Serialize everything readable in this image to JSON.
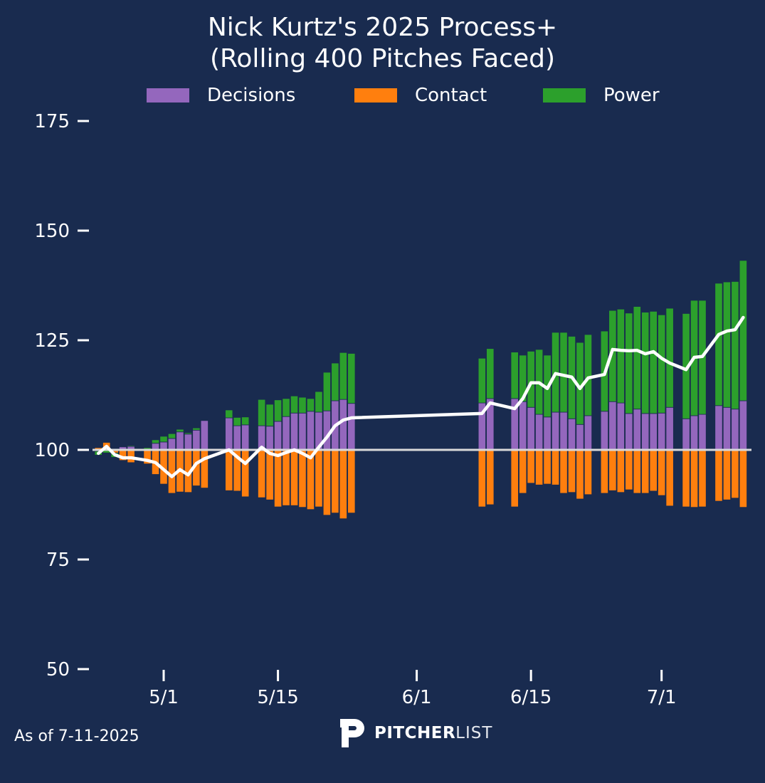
{
  "title_line1": "Nick Kurtz's 2025 Process+",
  "title_line2": "(Rolling 400 Pitches Faced)",
  "footer": {
    "as_of": "As of 7-11-2025",
    "logo_bold": "PITCHER",
    "logo_light": "LIST"
  },
  "chart_data": {
    "type": "bar",
    "stacked": true,
    "title": "Nick Kurtz's 2025 Process+ (Rolling 400 Pitches Faced)",
    "xlabel": "",
    "ylabel": "",
    "ylim": [
      50,
      178
    ],
    "yticks": [
      50,
      75,
      100,
      125,
      150,
      175
    ],
    "baseline": 100,
    "xticks": [
      {
        "label": "5/1",
        "day": 0
      },
      {
        "label": "5/15",
        "day": 14
      },
      {
        "label": "6/1",
        "day": 31
      },
      {
        "label": "6/15",
        "day": 45
      },
      {
        "label": "7/1",
        "day": 61
      }
    ],
    "xlim_days": [
      -9.3,
      72.3
    ],
    "legend": {
      "position": "top-center",
      "entries": [
        "Decisions",
        "Contact",
        "Power"
      ]
    },
    "colors": {
      "Decisions": "#9467bd",
      "Contact": "#ff7f0e",
      "Power": "#2ca02c",
      "line": "#ffffff",
      "baseline": "#d9d9d9"
    },
    "dates": [
      "4/23",
      "4/24",
      "4/25",
      "4/26",
      "4/27",
      "4/29",
      "4/30",
      "5/1",
      "5/2",
      "5/3",
      "5/4",
      "5/5",
      "5/6",
      "5/9",
      "5/10",
      "5/11",
      "5/13",
      "5/14",
      "5/15",
      "5/16",
      "5/17",
      "5/18",
      "5/19",
      "5/20",
      "5/21",
      "5/22",
      "5/23",
      "5/24",
      "6/9",
      "6/10",
      "6/13",
      "6/14",
      "6/15",
      "6/16",
      "6/17",
      "6/18",
      "6/19",
      "6/20",
      "6/21",
      "6/22",
      "6/24",
      "6/25",
      "6/26",
      "6/27",
      "6/28",
      "6/29",
      "6/30",
      "7/1",
      "7/2",
      "7/4",
      "7/5",
      "7/6",
      "7/8",
      "7/9",
      "7/10",
      "7/11"
    ],
    "days": [
      -8,
      -7,
      -6,
      -5,
      -4,
      -2,
      -1,
      0,
      1,
      2,
      3,
      4,
      5,
      8,
      9,
      10,
      12,
      13,
      14,
      15,
      16,
      17,
      18,
      19,
      20,
      21,
      22,
      23,
      39,
      40,
      43,
      44,
      45,
      46,
      47,
      48,
      49,
      50,
      51,
      52,
      54,
      55,
      56,
      57,
      58,
      59,
      60,
      61,
      62,
      64,
      65,
      66,
      68,
      69,
      70,
      71
    ],
    "series": [
      {
        "name": "Decisions",
        "values": [
          -0.3,
          0.2,
          -0.2,
          0.7,
          0.8,
          0.0,
          1.5,
          1.8,
          2.6,
          4.1,
          3.6,
          4.5,
          6.7,
          7.3,
          5.5,
          5.7,
          5.5,
          5.4,
          6.5,
          7.6,
          8.4,
          8.4,
          8.8,
          8.6,
          8.9,
          11.2,
          11.5,
          10.6,
          10.7,
          11.7,
          11.7,
          11.0,
          9.7,
          8.1,
          7.5,
          8.6,
          8.6,
          7.1,
          5.8,
          7.8,
          8.8,
          11.0,
          10.7,
          8.3,
          9.3,
          8.3,
          8.3,
          8.4,
          9.7,
          7.1,
          7.8,
          8.1,
          10.1,
          9.7,
          9.3,
          11.2
        ]
      },
      {
        "name": "Contact",
        "values": [
          0.5,
          1.5,
          -0.5,
          -2.4,
          -2.9,
          -3.2,
          -5.6,
          -7.8,
          -9.9,
          -9.6,
          -9.7,
          -8.2,
          -8.7,
          -9.3,
          -9.4,
          -10.7,
          -10.9,
          -11.4,
          -13.0,
          -12.7,
          -12.7,
          -13.1,
          -13.6,
          -13.0,
          -14.9,
          -14.4,
          -15.7,
          -14.4,
          -13.0,
          -12.5,
          -13.0,
          -9.9,
          -7.6,
          -8.0,
          -7.8,
          -8.0,
          -9.9,
          -9.7,
          -11.2,
          -10.2,
          -9.9,
          -9.3,
          -9.7,
          -9.1,
          -9.9,
          -9.9,
          -9.4,
          -10.4,
          -12.8,
          -13.0,
          -13.1,
          -13.0,
          -11.7,
          -11.4,
          -11.0,
          -13.1
        ]
      },
      {
        "name": "Power",
        "values": [
          -0.9,
          -0.7,
          -1.0,
          0.1,
          0.2,
          0.5,
          0.8,
          1.3,
          1.1,
          0.6,
          0.3,
          0.5,
          0.0,
          1.8,
          1.9,
          1.8,
          6.0,
          5.0,
          4.9,
          4.1,
          3.9,
          3.6,
          2.9,
          4.7,
          8.8,
          8.6,
          10.7,
          11.4,
          10.2,
          11.4,
          10.6,
          10.6,
          12.8,
          14.8,
          14.1,
          18.2,
          18.2,
          18.8,
          18.7,
          18.5,
          18.3,
          20.8,
          21.4,
          22.9,
          23.4,
          23.1,
          23.3,
          22.4,
          22.6,
          24.0,
          26.3,
          26.0,
          27.9,
          28.6,
          29.1,
          32.0
        ]
      },
      {
        "name": "Process+",
        "type": "line",
        "values": [
          99.2,
          100.8,
          98.9,
          98.2,
          98.2,
          97.6,
          97.1,
          95.5,
          93.9,
          95.5,
          94.3,
          96.9,
          98.0,
          100.0,
          98.4,
          96.9,
          100.6,
          99.2,
          98.7,
          99.4,
          100.0,
          99.2,
          98.2,
          100.6,
          102.9,
          105.5,
          106.8,
          107.3,
          108.3,
          110.7,
          109.4,
          111.7,
          115.3,
          115.3,
          114.0,
          117.4,
          117.0,
          116.6,
          114.0,
          116.4,
          117.2,
          122.9,
          122.7,
          122.6,
          122.7,
          121.9,
          122.4,
          120.9,
          119.8,
          118.3,
          121.1,
          121.3,
          126.3,
          127.1,
          127.4,
          130.2
        ]
      }
    ]
  }
}
